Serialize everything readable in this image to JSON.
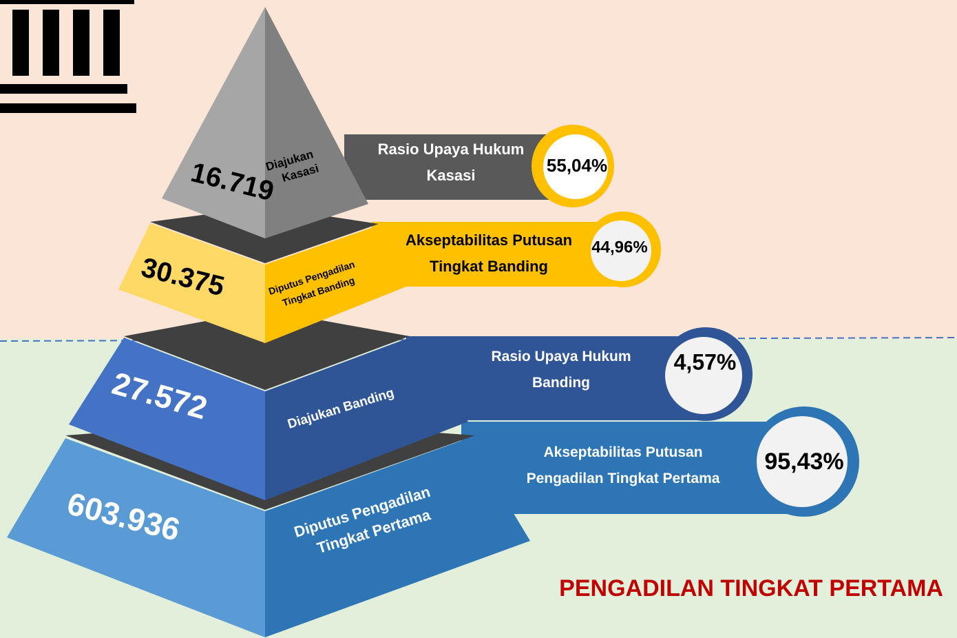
{
  "levels": [
    {
      "value": "16.719",
      "label": [
        "Diajukan",
        "Kasasi"
      ],
      "ratio_label": [
        "Rasio Upaya Hukum",
        "Kasasi"
      ],
      "ratio": "55,04%"
    },
    {
      "value": "30.375",
      "label": [
        "Diputus Pengadilan",
        "Tingkat  Banding"
      ],
      "ratio_label": [
        "Akseptabilitas  Putusan",
        "Tingkat Banding"
      ],
      "ratio": "44,96%"
    },
    {
      "value": "27.572",
      "label": [
        "Diajukan Banding"
      ],
      "ratio_label": [
        "Rasio Upaya Hukum",
        "Banding"
      ],
      "ratio": "4,57%"
    },
    {
      "value": "603.936",
      "label": [
        "Diputus Pengadilan",
        "Tingkat Pertama"
      ],
      "ratio_label": [
        "Akseptabilitas  Putusan",
        "Pengadilan Tingkat Pertama"
      ],
      "ratio": "95,43%"
    }
  ],
  "section_label": "PENGADILAN TINGKAT PERTAMA"
}
